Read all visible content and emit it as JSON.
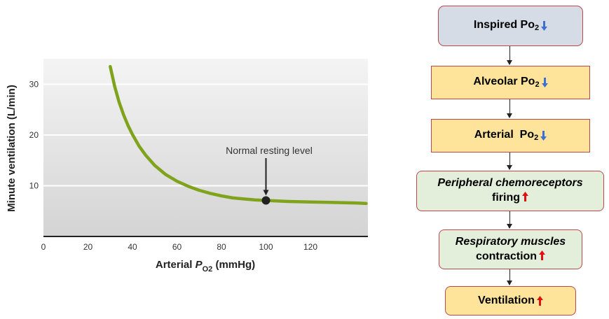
{
  "chart_data": {
    "type": "line",
    "xlabel_main": "Arterial ",
    "xlabel_p": "P",
    "xlabel_sub": "O2",
    "xlabel_unit": " (mmHg)",
    "ylabel": "Minute ventilation (L/min)",
    "xlim": [
      0,
      145
    ],
    "ylim": [
      0,
      35
    ],
    "x_ticks": [
      "0",
      "20",
      "40",
      "60",
      "80",
      "100",
      "120"
    ],
    "y_ticks": [
      "10",
      "20",
      "30"
    ],
    "grid": true,
    "series": [
      {
        "x": [
          30,
          32,
          34,
          36,
          38,
          40,
          43,
          46,
          50,
          55,
          60,
          65,
          70,
          75,
          80,
          85,
          90,
          95,
          100,
          105,
          110,
          120,
          130,
          140,
          145
        ],
        "y": [
          33.5,
          29.6,
          26.5,
          24.0,
          21.9,
          20.1,
          17.8,
          16.0,
          14.0,
          12.2,
          10.9,
          9.9,
          9.1,
          8.5,
          8.0,
          7.6,
          7.4,
          7.2,
          7.1,
          7.0,
          6.9,
          6.8,
          6.7,
          6.6,
          6.5
        ],
        "color": "#7fa31a"
      }
    ],
    "marker": {
      "x": 100,
      "y": 7.1,
      "label": "Normal resting level"
    }
  },
  "flow": {
    "inspired": {
      "label": "Inspired Po",
      "sub": "2"
    },
    "alveolar": {
      "label": "Alveolar Po",
      "sub": "2"
    },
    "arterial": {
      "label": "Arterial  Po",
      "sub": "2"
    },
    "chemo": {
      "line1": "Peripheral chemoreceptors",
      "line2": "firing"
    },
    "muscles": {
      "line1": "Respiratory muscles",
      "line2": "contraction"
    },
    "ventilation": {
      "label": "Ventilation"
    }
  },
  "colors": {
    "down_arrow": "#3f6fd0",
    "up_arrow": "#e01010",
    "curve": "#7fa31a"
  }
}
